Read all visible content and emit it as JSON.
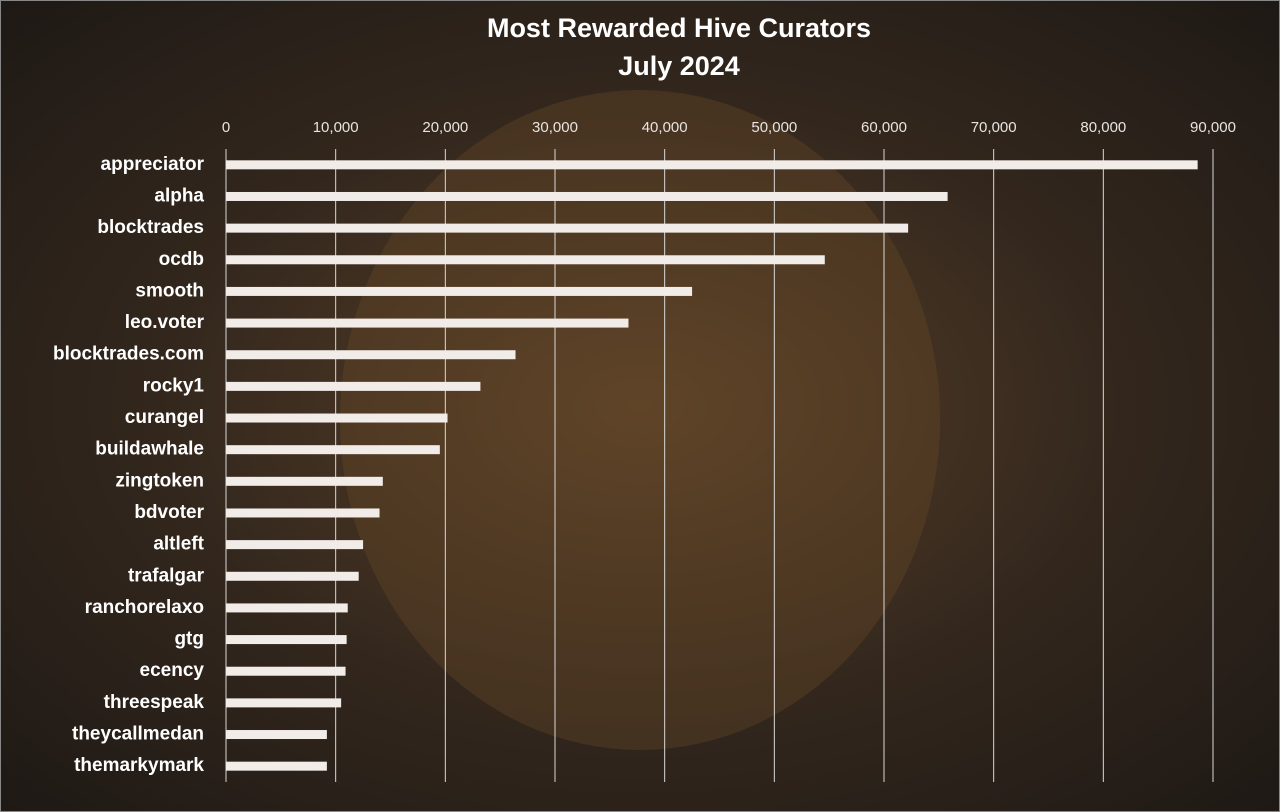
{
  "chart_data": {
    "type": "bar",
    "orientation": "horizontal",
    "title": "Most Rewarded Hive Curators",
    "subtitle": "July 2024",
    "categories": [
      "appreciator",
      "alpha",
      "blocktrades",
      "ocdb",
      "smooth",
      "leo.voter",
      "blocktrades.com",
      "rocky1",
      "curangel",
      "buildawhale",
      "zingtoken",
      "bdvoter",
      "altleft",
      "trafalgar",
      "ranchorelaxo",
      "gtg",
      "ecency",
      "threespeak",
      "theycallmedan",
      "themarkymark"
    ],
    "values": [
      88600,
      65800,
      62200,
      54600,
      42500,
      36700,
      26400,
      23200,
      20200,
      19500,
      14300,
      14000,
      12500,
      12100,
      11100,
      11000,
      10900,
      10500,
      9200,
      9200
    ],
    "color": "#f2ece9",
    "xlim": [
      0,
      90000
    ],
    "xticks": [
      0,
      {
        "value": 10000,
        "label": "10,000"
      },
      {
        "value": 20000,
        "label": "20,000"
      },
      {
        "value": 30000,
        "label": "30,000"
      },
      {
        "value": 40000,
        "label": "40,000"
      },
      {
        "value": 50000,
        "label": "50,000"
      },
      {
        "value": 60000,
        "label": "60,000"
      },
      {
        "value": 70000,
        "label": "70,000"
      },
      {
        "value": 80000,
        "label": "80,000"
      },
      {
        "value": 90000,
        "label": "90,000"
      }
    ],
    "grid": true
  }
}
